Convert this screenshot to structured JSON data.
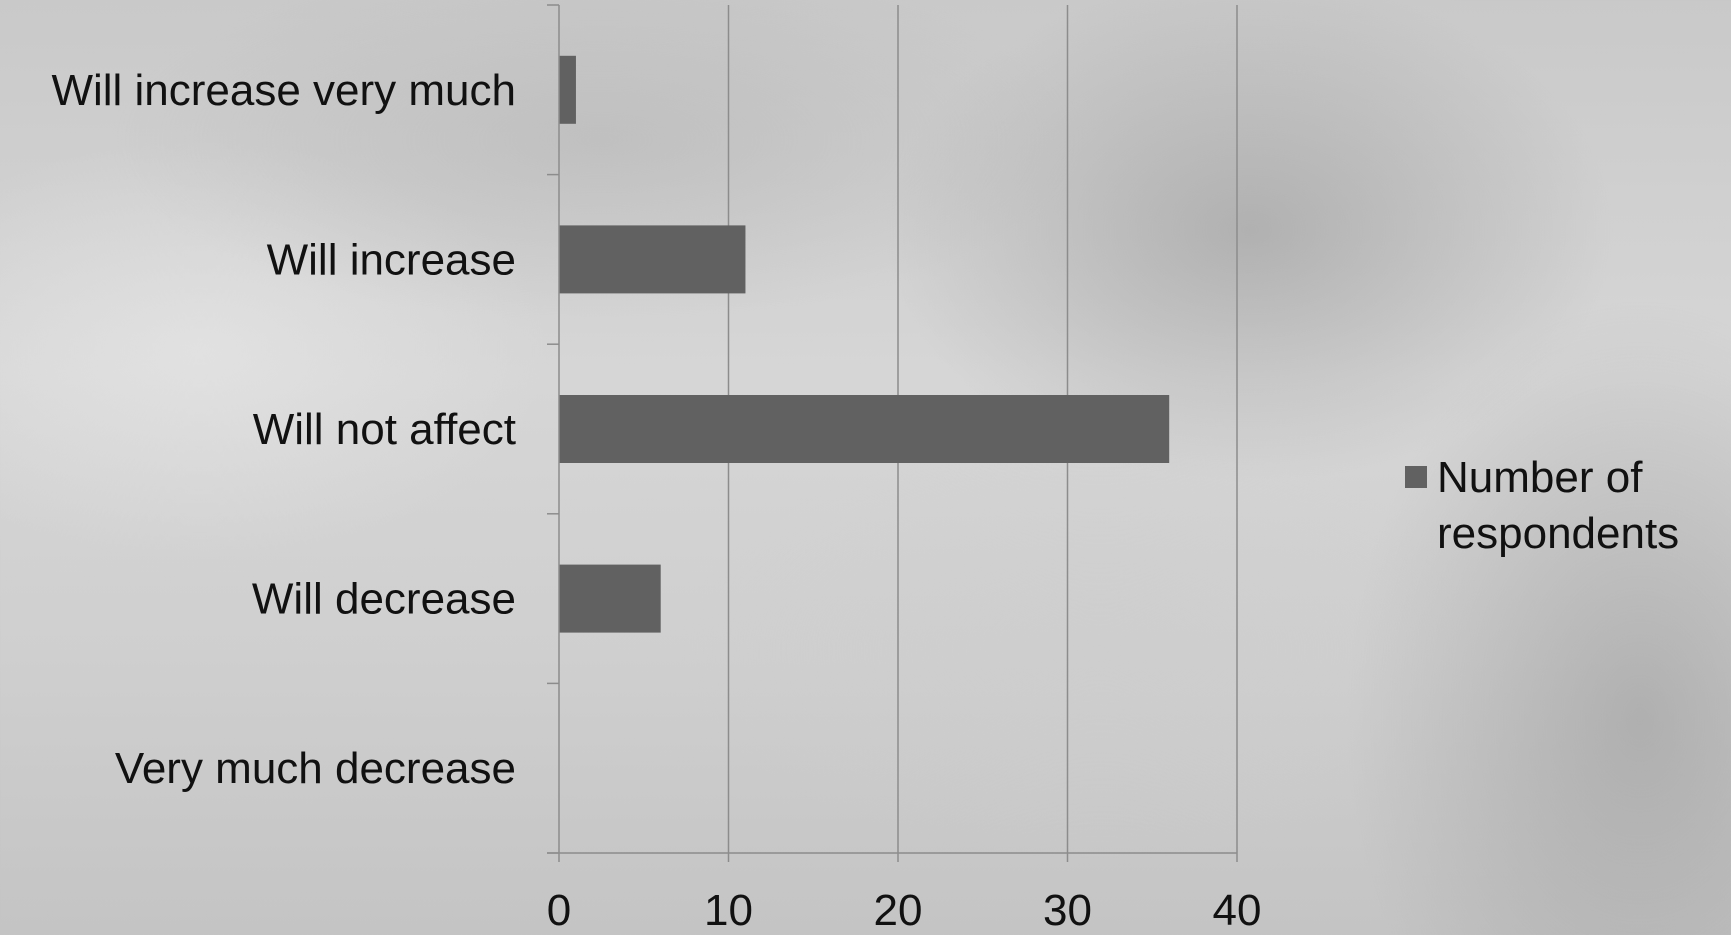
{
  "chart_data": {
    "type": "bar",
    "orientation": "horizontal",
    "categories": [
      "Will increase very much",
      "Will increase",
      "Will not affect",
      "Will decrease",
      "Very much decrease"
    ],
    "series": [
      {
        "name": "Number of respondents",
        "values": [
          1,
          11,
          36,
          6,
          0
        ],
        "color": "#616161"
      }
    ],
    "xlim": [
      0,
      40
    ],
    "xticks": [
      "0",
      "10",
      "20",
      "30",
      "40"
    ],
    "grid": true,
    "legend_position": "right",
    "title": "",
    "xlabel": "",
    "ylabel": ""
  },
  "colors": {
    "bar": "#616161",
    "gridline": "#8c8c8c",
    "axis": "#8c8c8c",
    "text": "#111111"
  }
}
